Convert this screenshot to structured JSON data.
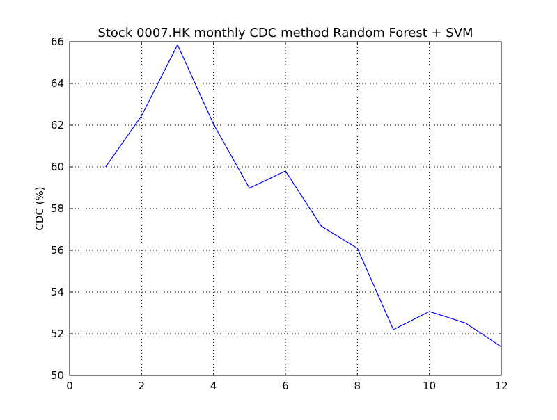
{
  "chart_data": {
    "type": "line",
    "title": "Stock 0007.HK monthly CDC method Random Forest + SVM",
    "xlabel": "",
    "ylabel": "CDC (%)",
    "xlim": [
      0,
      12
    ],
    "ylim": [
      50,
      66
    ],
    "xticks": [
      0,
      2,
      4,
      6,
      8,
      10,
      12
    ],
    "yticks": [
      50,
      52,
      54,
      56,
      58,
      60,
      62,
      64,
      66
    ],
    "grid": true,
    "series": [
      {
        "color": "#0000ff",
        "x": [
          1,
          2,
          3,
          4,
          5,
          6,
          7,
          8,
          9,
          10,
          11,
          12
        ],
        "y": [
          60.0,
          62.45,
          65.85,
          62.05,
          58.98,
          59.8,
          57.15,
          56.1,
          52.2,
          53.07,
          52.52,
          51.38
        ]
      }
    ]
  }
}
